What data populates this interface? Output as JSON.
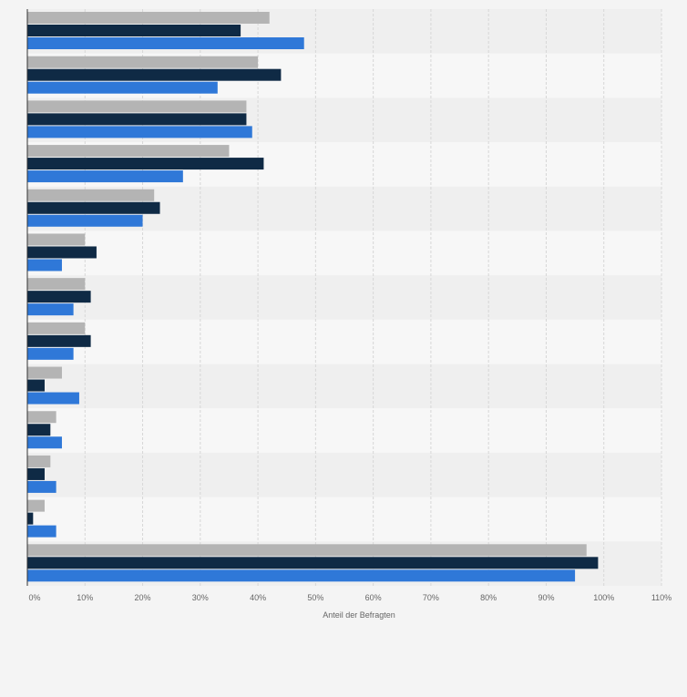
{
  "chart_data": {
    "type": "bar",
    "orientation": "horizontal",
    "title": "",
    "xlabel": "Anteil der Befragten",
    "ylabel": "",
    "xlim": [
      0,
      110
    ],
    "x_ticks": [
      0,
      10,
      20,
      30,
      40,
      50,
      60,
      70,
      80,
      90,
      100,
      110
    ],
    "x_tick_labels": [
      "0%",
      "10%",
      "20%",
      "30%",
      "40%",
      "50%",
      "60%",
      "70%",
      "80%",
      "90%",
      "100%",
      "110%"
    ],
    "grid": true,
    "legend": "none",
    "categories": [
      "",
      "",
      "",
      "",
      "",
      "",
      "",
      "",
      "",
      "",
      "",
      "",
      ""
    ],
    "series": [
      {
        "color": "#b4b4b4",
        "values": [
          42,
          40,
          38,
          35,
          22,
          10,
          10,
          10,
          6,
          5,
          4,
          3,
          97
        ]
      },
      {
        "color": "#0f2a45",
        "values": [
          37,
          44,
          38,
          41,
          23,
          12,
          11,
          11,
          3,
          4,
          3,
          1,
          99
        ]
      },
      {
        "color": "#2f78d8",
        "values": [
          48,
          33,
          39,
          27,
          20,
          6,
          8,
          8,
          9,
          6,
          5,
          5,
          95
        ]
      }
    ]
  }
}
